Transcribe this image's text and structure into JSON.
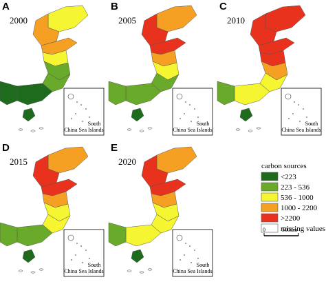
{
  "panels": [
    {
      "letter": "A",
      "year": "2000"
    },
    {
      "letter": "B",
      "year": "2005"
    },
    {
      "letter": "C",
      "year": "2010"
    },
    {
      "letter": "D",
      "year": "2015"
    },
    {
      "letter": "E",
      "year": "2020"
    }
  ],
  "inset_label": [
    "South",
    "China Sea Islands"
  ],
  "legend": {
    "title": "carbon sources",
    "items": [
      {
        "label": "<223",
        "color": "#1e6b1e"
      },
      {
        "label": "223 - 536",
        "color": "#6aaa2a"
      },
      {
        "label": "536 - 1000",
        "color": "#f5f532"
      },
      {
        "label": "1000 - 2200",
        "color": "#f5a023"
      },
      {
        "label": ">2200",
        "color": "#e8321e"
      },
      {
        "label": "missing values",
        "color": "#ffffff"
      }
    ]
  },
  "scale": {
    "labels": [
      "0",
      "500km"
    ]
  }
}
